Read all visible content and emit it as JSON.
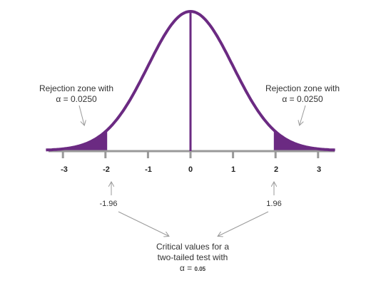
{
  "diagram": {
    "tick_labels": [
      "-3",
      "-2",
      "-1",
      "0",
      "1",
      "2",
      "3"
    ],
    "left_zone": {
      "line1": "Rejection zone with",
      "line2": "α = 0.0250"
    },
    "right_zone": {
      "line1": "Rejection zone with",
      "line2": "α = 0.0250"
    },
    "critical_left": "-1.96",
    "critical_right": "1.96",
    "caption": {
      "line1": "Critical values for a",
      "line2": "two-tailed test with",
      "line3_prefix": "α = ",
      "line3_value": "0.05"
    },
    "colors": {
      "curve": "#6b2a82",
      "fill": "#6b2a82",
      "axis": "#999999",
      "arrow": "#9a9a9a"
    }
  },
  "chart_data": {
    "type": "area",
    "x_range": [
      -3.4,
      3.4
    ],
    "ticks": [
      -3,
      -2,
      -1,
      0,
      1,
      2,
      3
    ],
    "critical_values": [
      -1.96,
      1.96
    ],
    "alpha_each_tail": 0.025,
    "alpha_total": 0.05
  }
}
